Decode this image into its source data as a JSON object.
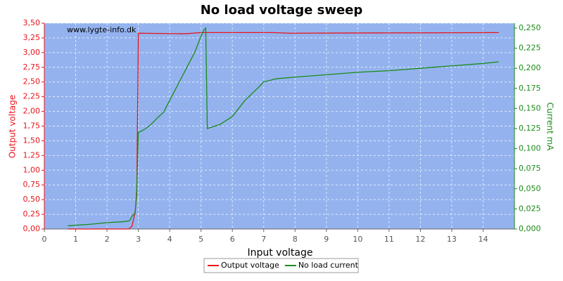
{
  "chart_data": {
    "type": "line",
    "title": "No load voltage sweep",
    "watermark": "www.lygte-info.dk",
    "x_label": "Input voltage",
    "y_label": "Output voltage",
    "y2_label": "Current mA",
    "xlim": [
      0,
      15
    ],
    "xticks": [
      0,
      1,
      2,
      3,
      4,
      5,
      6,
      7,
      8,
      9,
      10,
      11,
      12,
      13,
      14
    ],
    "ylim": [
      0,
      3.5
    ],
    "yticks": [
      {
        "value": 0,
        "label": "0,00"
      },
      {
        "value": 0.25,
        "label": "0,25"
      },
      {
        "value": 0.5,
        "label": "0,50"
      },
      {
        "value": 0.75,
        "label": "0,75"
      },
      {
        "value": 1,
        "label": "1,00"
      },
      {
        "value": 1.25,
        "label": "1,25"
      },
      {
        "value": 1.5,
        "label": "1,50"
      },
      {
        "value": 1.75,
        "label": "1,75"
      },
      {
        "value": 2,
        "label": "2,00"
      },
      {
        "value": 2.25,
        "label": "2,25"
      },
      {
        "value": 2.5,
        "label": "2,50"
      },
      {
        "value": 2.75,
        "label": "2,75"
      },
      {
        "value": 3,
        "label": "3,00"
      },
      {
        "value": 3.25,
        "label": "3,25"
      },
      {
        "value": 3.5,
        "label": "3,50"
      }
    ],
    "y2lim": [
      0,
      0.2561
    ],
    "y2ticks": [
      {
        "value": 0,
        "label": "0,000"
      },
      {
        "value": 0.025,
        "label": "0,025"
      },
      {
        "value": 0.05,
        "label": "0,050"
      },
      {
        "value": 0.075,
        "label": "0,075"
      },
      {
        "value": 0.1,
        "label": "0,100"
      },
      {
        "value": 0.125,
        "label": "0,125"
      },
      {
        "value": 0.15,
        "label": "0,150"
      },
      {
        "value": 0.175,
        "label": "0,175"
      },
      {
        "value": 0.2,
        "label": "0,200"
      },
      {
        "value": 0.225,
        "label": "0,225"
      },
      {
        "value": 0.25,
        "label": "0,250"
      }
    ],
    "grid": true,
    "background": "#94b3ee",
    "series": [
      {
        "name": "Output voltage",
        "color": "#e8141c",
        "x": [
          0.75,
          2.7,
          2.8,
          2.9,
          2.95,
          3.0,
          4.5,
          5.0,
          7.3,
          7.8,
          14.5
        ],
        "values": [
          0,
          0,
          0.05,
          0.3,
          0.6,
          3.33,
          3.32,
          3.34,
          3.34,
          3.33,
          3.34
        ]
      },
      {
        "name": "No load current",
        "color": "#1a8a1a",
        "axis": "y2",
        "x": [
          0.75,
          1.5,
          2.0,
          2.5,
          2.7,
          2.75,
          2.8,
          2.9,
          2.95,
          3.0,
          3.2,
          3.4,
          3.6,
          3.8,
          4.0,
          4.2,
          4.4,
          4.6,
          4.8,
          5.0,
          5.1,
          5.15,
          5.2,
          5.6,
          6.0,
          6.4,
          6.8,
          7.0,
          7.4,
          8,
          9,
          10,
          11,
          12,
          13,
          14,
          14.5
        ],
        "values": [
          0.004,
          0.006,
          0.008,
          0.009,
          0.01,
          0.012,
          0.016,
          0.02,
          0.05,
          0.12,
          0.124,
          0.13,
          0.138,
          0.145,
          0.16,
          0.175,
          0.19,
          0.205,
          0.22,
          0.24,
          0.248,
          0.25,
          0.125,
          0.13,
          0.14,
          0.16,
          0.175,
          0.183,
          0.187,
          0.189,
          0.192,
          0.195,
          0.197,
          0.2,
          0.203,
          0.206,
          0.208
        ]
      }
    ],
    "legend": "bottom"
  }
}
